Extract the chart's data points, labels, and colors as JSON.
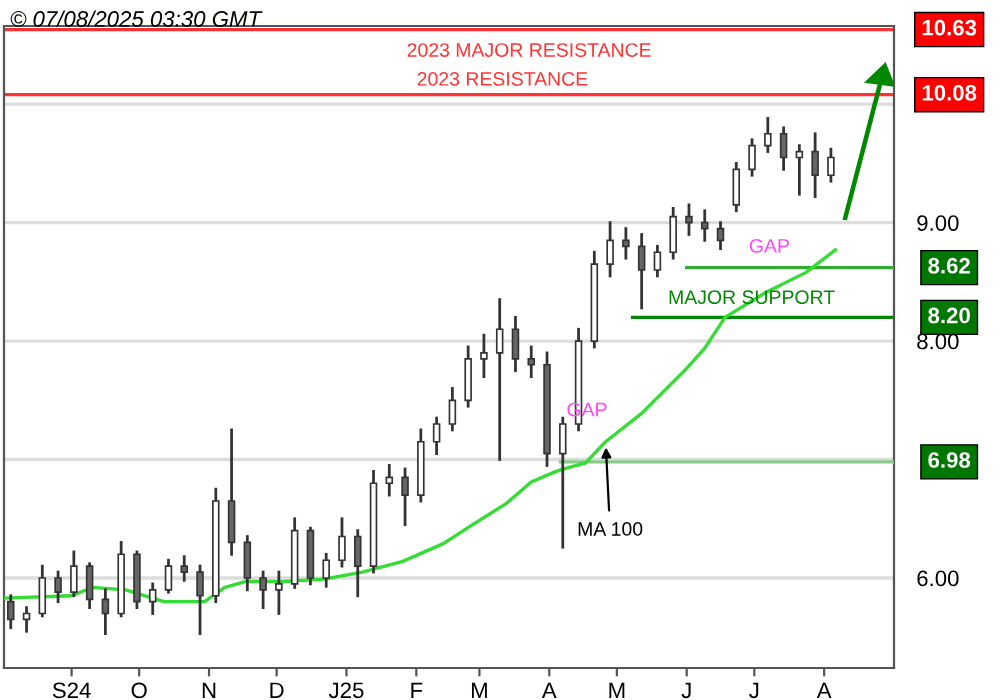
{
  "chart_data": {
    "type": "candlestick",
    "title": "© 07/08/2025 03:30 GMT",
    "x": [
      "2024-08-05",
      "2024-08-12",
      "2024-08-19",
      "2024-08-26",
      "2024-09-02",
      "2024-09-09",
      "2024-09-16",
      "2024-09-23",
      "2024-09-30",
      "2024-10-07",
      "2024-10-14",
      "2024-10-21",
      "2024-10-28",
      "2024-11-04",
      "2024-11-11",
      "2024-11-18",
      "2024-11-25",
      "2024-12-02",
      "2024-12-09",
      "2024-12-16",
      "2024-12-23",
      "2024-12-30",
      "2025-01-06",
      "2025-01-13",
      "2025-01-20",
      "2025-01-27",
      "2025-02-03",
      "2025-02-10",
      "2025-02-17",
      "2025-02-24",
      "2025-03-03",
      "2025-03-10",
      "2025-03-17",
      "2025-03-24",
      "2025-03-31",
      "2025-04-07",
      "2025-04-14",
      "2025-04-21",
      "2025-04-28",
      "2025-05-05",
      "2025-05-12",
      "2025-05-19",
      "2025-05-26",
      "2025-06-02",
      "2025-06-09",
      "2025-06-16",
      "2025-06-23",
      "2025-06-30",
      "2025-07-07",
      "2025-07-14",
      "2025-07-21",
      "2025-07-28",
      "2025-08-04"
    ],
    "ohlc": [
      [
        5.8,
        5.85,
        5.58,
        5.65
      ],
      [
        5.65,
        5.75,
        5.55,
        5.7
      ],
      [
        5.7,
        6.1,
        5.68,
        6.0
      ],
      [
        6.0,
        6.05,
        5.8,
        5.88
      ],
      [
        5.88,
        6.22,
        5.85,
        6.1
      ],
      [
        6.1,
        6.12,
        5.75,
        5.82
      ],
      [
        5.82,
        5.9,
        5.53,
        5.7
      ],
      [
        5.7,
        6.3,
        5.68,
        6.2
      ],
      [
        6.2,
        6.22,
        5.75,
        5.8
      ],
      [
        5.8,
        5.95,
        5.7,
        5.9
      ],
      [
        5.9,
        6.15,
        5.88,
        6.1
      ],
      [
        6.1,
        6.18,
        5.98,
        6.05
      ],
      [
        6.05,
        6.1,
        5.53,
        5.85
      ],
      [
        5.85,
        6.75,
        5.8,
        6.65
      ],
      [
        6.65,
        7.25,
        6.2,
        6.3
      ],
      [
        6.3,
        6.35,
        5.9,
        6.0
      ],
      [
        6.0,
        6.05,
        5.75,
        5.9
      ],
      [
        5.9,
        6.05,
        5.7,
        5.95
      ],
      [
        5.95,
        6.5,
        5.92,
        6.4
      ],
      [
        6.4,
        6.42,
        5.95,
        6.0
      ],
      [
        6.0,
        6.2,
        5.93,
        6.15
      ],
      [
        6.15,
        6.5,
        6.1,
        6.35
      ],
      [
        6.35,
        6.4,
        5.85,
        6.1
      ],
      [
        6.1,
        6.9,
        6.05,
        6.8
      ],
      [
        6.8,
        6.95,
        6.7,
        6.85
      ],
      [
        6.85,
        6.92,
        6.45,
        6.7
      ],
      [
        6.7,
        7.25,
        6.65,
        7.15
      ],
      [
        7.15,
        7.35,
        7.05,
        7.3
      ],
      [
        7.3,
        7.6,
        7.25,
        7.5
      ],
      [
        7.5,
        7.95,
        7.45,
        7.85
      ],
      [
        7.85,
        8.05,
        7.7,
        7.9
      ],
      [
        7.9,
        8.35,
        7.0,
        8.1
      ],
      [
        8.1,
        8.2,
        7.75,
        7.85
      ],
      [
        7.85,
        7.95,
        7.7,
        7.8
      ],
      [
        7.8,
        7.9,
        6.95,
        7.05
      ],
      [
        7.05,
        7.35,
        6.26,
        7.3
      ],
      [
        7.3,
        8.1,
        7.25,
        8.0
      ],
      [
        8.0,
        8.75,
        7.95,
        8.65
      ],
      [
        8.65,
        9.0,
        8.55,
        8.85
      ],
      [
        8.85,
        8.95,
        8.7,
        8.8
      ],
      [
        8.8,
        8.9,
        8.28,
        8.6
      ],
      [
        8.6,
        8.8,
        8.55,
        8.75
      ],
      [
        8.75,
        9.12,
        8.7,
        9.05
      ],
      [
        9.05,
        9.15,
        8.9,
        9.0
      ],
      [
        9.0,
        9.1,
        8.85,
        8.95
      ],
      [
        8.95,
        9.0,
        8.78,
        8.85
      ],
      [
        9.15,
        9.5,
        9.1,
        9.45
      ],
      [
        9.45,
        9.7,
        9.4,
        9.65
      ],
      [
        9.65,
        9.88,
        9.6,
        9.75
      ],
      [
        9.75,
        9.8,
        9.45,
        9.55
      ],
      [
        9.55,
        9.65,
        9.24,
        9.6
      ],
      [
        9.6,
        9.75,
        9.22,
        9.4
      ],
      [
        9.4,
        9.62,
        9.35,
        9.55
      ]
    ],
    "color": "#333333",
    "series": [
      {
        "type": "line",
        "color": "#33aa33",
        "x": [
          "2025-06-01",
          "2025-09-01"
        ],
        "values": [
          8.62,
          8.62
        ],
        "value_labels": [
          null,
          "8.62"
        ]
      },
      {
        "type": "line",
        "color": "#008800",
        "x": [
          "2025-05-08",
          "2025-09-01"
        ],
        "values": [
          8.2,
          8.2
        ],
        "value_labels": [
          null,
          "8.20"
        ]
      },
      {
        "type": "line",
        "color": "#88cc88",
        "x": [
          "2025-04-06",
          "2025-09-01"
        ],
        "values": [
          6.98,
          6.98
        ],
        "value_labels": [
          null,
          "6.98"
        ]
      },
      {
        "name": "MA 100",
        "type": "line",
        "color": "#33dd33",
        "x": [
          "2024-08-02",
          "2024-09-01",
          "2024-09-10",
          "2024-09-25",
          "2024-10-12",
          "2024-10-30",
          "2024-11-08",
          "2024-11-17",
          "2024-12-04",
          "2024-12-22",
          "2025-01-08",
          "2025-01-26",
          "2025-02-13",
          "2025-02-26",
          "2025-03-13",
          "2025-03-24",
          "2025-04-04",
          "2025-04-11",
          "2025-04-17",
          "2025-04-26",
          "2025-05-12",
          "2025-06-01",
          "2025-06-09",
          "2025-06-18",
          "2025-07-06",
          "2025-07-24",
          "2025-08-06"
        ],
        "values": [
          5.83,
          5.85,
          5.92,
          5.9,
          5.8,
          5.8,
          5.92,
          5.97,
          5.97,
          5.99,
          6.05,
          6.14,
          6.29,
          6.45,
          6.63,
          6.81,
          6.9,
          6.94,
          6.97,
          7.15,
          7.39,
          7.77,
          7.94,
          8.2,
          8.41,
          8.58,
          8.77
        ]
      }
    ],
    "ref_lines": [
      {
        "axis": "y",
        "value": 10.63,
        "label": "10.63",
        "color": "#ff3333"
      },
      {
        "axis": "y",
        "value": 10.08,
        "label": "10.08",
        "color": "#ff3333"
      }
    ],
    "annotations": [
      "2023 MAJOR RESISTANCE",
      "2023 RESISTANCE",
      "GAP",
      "MAJOR SUPPORT",
      "GAP"
    ],
    "xlim": [
      "2024-08-02",
      "2025-09-01"
    ],
    "xticks": [
      {
        "value": "2024-09-01",
        "label": "S24"
      },
      {
        "value": "2024-10-01",
        "label": "O"
      },
      {
        "value": "2024-11-01",
        "label": "N"
      },
      {
        "value": "2024-12-01",
        "label": "D"
      },
      {
        "value": "2025-01-01",
        "label": "J25"
      },
      {
        "value": "2025-02-01",
        "label": "F"
      },
      {
        "value": "2025-03-01",
        "label": "M"
      },
      {
        "value": "2025-04-01",
        "label": "A"
      },
      {
        "value": "2025-05-01",
        "label": "M"
      },
      {
        "value": "2025-06-01",
        "label": "J"
      },
      {
        "value": "2025-07-01",
        "label": "J"
      },
      {
        "value": "2025-08-01",
        "label": "A"
      }
    ],
    "ylim": [
      5.24,
      10.66
    ],
    "yticks": [
      {
        "value": 6,
        "label": "6.00"
      },
      {
        "value": 7,
        "label": null
      },
      {
        "value": 8,
        "label": "8.00"
      },
      {
        "value": 9,
        "label": "9.00"
      },
      {
        "value": 10,
        "label": null
      }
    ],
    "grid": "y"
  }
}
